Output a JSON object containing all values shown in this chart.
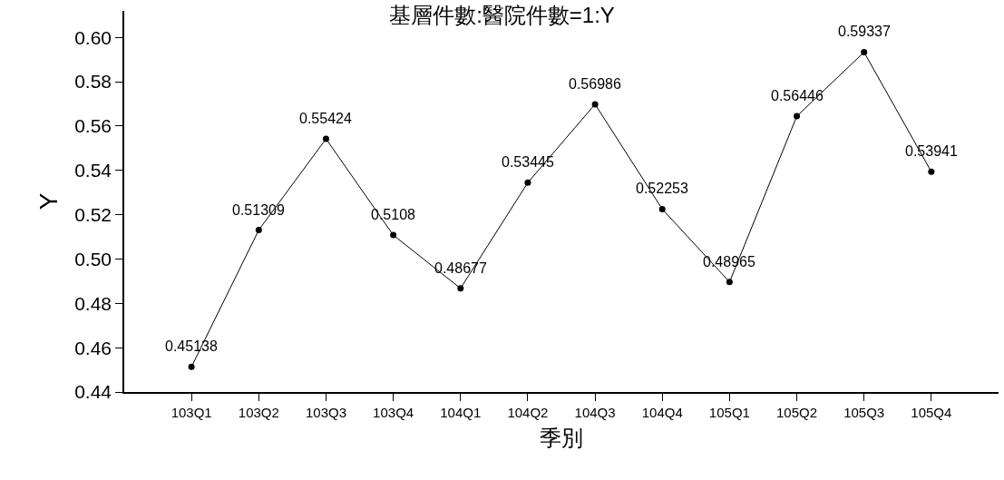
{
  "chart_data": {
    "type": "line",
    "title": "基層件數:醫院件數=1:Y",
    "xlabel": "季別",
    "ylabel": "Y",
    "categories": [
      "103Q1",
      "103Q2",
      "103Q3",
      "103Q4",
      "104Q1",
      "104Q2",
      "104Q3",
      "104Q4",
      "105Q1",
      "105Q2",
      "105Q3",
      "105Q4"
    ],
    "series": [
      {
        "color": "#000000",
        "values": [
          0.45138,
          0.51309,
          0.55424,
          0.5108,
          0.48677,
          0.53445,
          0.56986,
          0.52253,
          0.48965,
          0.56446,
          0.59337,
          0.53941
        ]
      }
    ],
    "ylim": [
      0.44,
      0.612
    ],
    "yticks": [
      {
        "value": 0.44,
        "label": "0.44"
      },
      {
        "value": 0.46,
        "label": "0.46"
      },
      {
        "value": 0.48,
        "label": "0.48"
      },
      {
        "value": 0.5,
        "label": "0.50"
      },
      {
        "value": 0.52,
        "label": "0.52"
      },
      {
        "value": 0.54,
        "label": "0.54"
      },
      {
        "value": 0.56,
        "label": "0.56"
      },
      {
        "value": 0.58,
        "label": "0.58"
      },
      {
        "value": 0.6,
        "label": "0.60"
      }
    ],
    "data_labels": true,
    "marker": "circle",
    "line_style": "solid"
  }
}
